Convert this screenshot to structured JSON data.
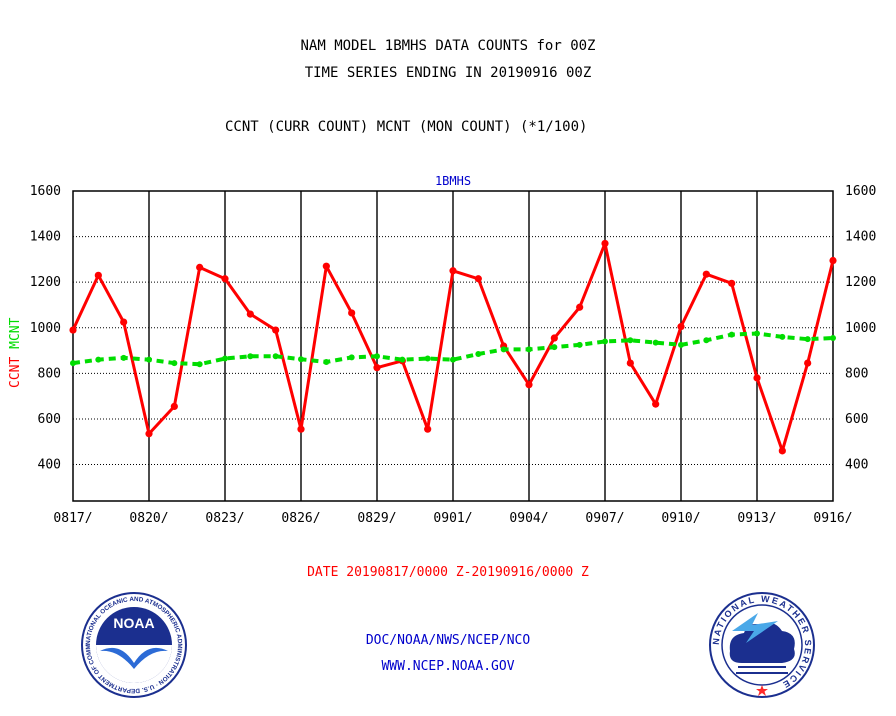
{
  "header": {
    "title_line1": "NAM MODEL 1BMHS DATA COUNTS for 00Z",
    "title_line2": "TIME SERIES ENDING IN 20190916 00Z",
    "series_note": "CCNT (CURR COUNT) MCNT (MON COUNT) (*1/100)"
  },
  "footer": {
    "date_range": "DATE 20190817/0000 Z-20190916/0000 Z",
    "org_line": "DOC/NOAA/NWS/NCEP/NCO",
    "website": "WWW.NCEP.NOAA.GOV"
  },
  "logos": {
    "noaa": {
      "text": "NOAA",
      "ring": "NATIONAL OCEANIC AND ATMOSPHERIC ADMINISTRATION · U.S. DEPARTMENT OF COMMERCE"
    },
    "nws": {
      "ring": "NATIONAL WEATHER SERVICE"
    }
  },
  "colors": {
    "ccnt": "#ff0000",
    "mcnt": "#00dd00",
    "plot_title": "#0000cc",
    "axis": "#000000",
    "footer_blue": "#0000cc",
    "footer_red": "#ff0000"
  },
  "chart_data": {
    "type": "line",
    "title": "1BMHS",
    "ylabel_left": [
      "CCNT",
      "MCNT"
    ],
    "ylim": [
      240,
      1600
    ],
    "yticks": [
      400,
      600,
      800,
      1000,
      1200,
      1400,
      1600
    ],
    "grid": true,
    "x_tick_labels": [
      "0817/",
      "0820/",
      "0823/",
      "0826/",
      "0829/",
      "0901/",
      "0904/",
      "0907/",
      "0910/",
      "0913/",
      "0916/"
    ],
    "x_tick_dates": [
      "0817",
      "0820",
      "0823",
      "0826",
      "0829",
      "0901",
      "0904",
      "0907",
      "0910",
      "0913",
      "0916"
    ],
    "x": [
      "0817",
      "0818",
      "0819",
      "0820",
      "0821",
      "0822",
      "0823",
      "0824",
      "0825",
      "0826",
      "0827",
      "0828",
      "0829",
      "0830",
      "0831",
      "0901",
      "0902",
      "0903",
      "0904",
      "0905",
      "0906",
      "0907",
      "0908",
      "0909",
      "0910",
      "0911",
      "0912",
      "0913",
      "0914",
      "0915",
      "0916"
    ],
    "series": [
      {
        "key": "CCNT",
        "style": "solid",
        "values": [
          990,
          1230,
          1025,
          535,
          655,
          1265,
          1215,
          1060,
          990,
          555,
          1270,
          1065,
          825,
          855,
          555,
          1250,
          1215,
          920,
          750,
          955,
          1090,
          1370,
          845,
          665,
          1005,
          1235,
          1195,
          780,
          460,
          845,
          1295
        ]
      },
      {
        "key": "MCNT",
        "style": "dashed",
        "values": [
          845,
          860,
          868,
          860,
          845,
          840,
          865,
          875,
          875,
          862,
          850,
          870,
          875,
          860,
          865,
          860,
          885,
          905,
          905,
          915,
          925,
          940,
          945,
          935,
          925,
          945,
          970,
          975,
          960,
          950,
          955
        ]
      }
    ]
  }
}
